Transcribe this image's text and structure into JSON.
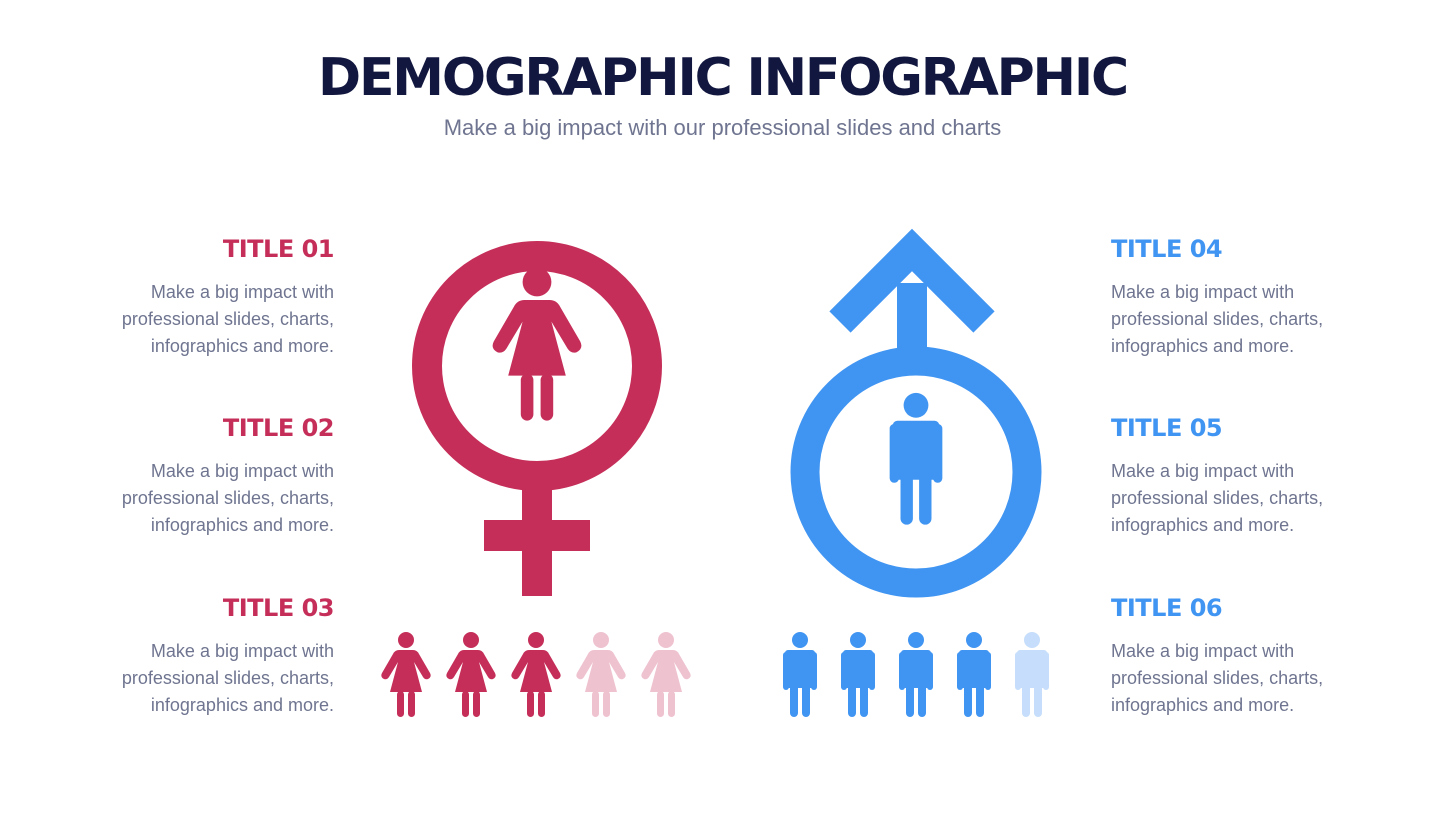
{
  "header": {
    "title": "DEMOGRAPHIC INFOGRAPHIC",
    "subtitle": "Make a big impact with our professional slides and charts"
  },
  "colors": {
    "female": "#c52e58",
    "female_light": "#efc2d0",
    "male": "#4195f2",
    "male_light": "#c6defb",
    "title": "#12173f",
    "body": "#6f7590"
  },
  "left_items": [
    {
      "title": "TITLE 01",
      "body": "Make a big impact with professional slides, charts, infographics and more."
    },
    {
      "title": "TITLE 02",
      "body": "Make a big impact with professional slides, charts, infographics and more."
    },
    {
      "title": "TITLE 03",
      "body": "Make a big impact with professional slides, charts, infographics and more."
    }
  ],
  "right_items": [
    {
      "title": "TITLE 04",
      "body": "Make a big impact with professional slides, charts, infographics and more."
    },
    {
      "title": "TITLE 05",
      "body": "Make a big impact with professional slides, charts, infographics and more."
    },
    {
      "title": "TITLE 06",
      "body": "Make a big impact with professional slides, charts, infographics and more."
    }
  ],
  "icons": {
    "female_symbol": "female-symbol-icon",
    "male_symbol": "male-symbol-icon",
    "female_person": "female-person-icon",
    "male_person": "male-person-icon"
  },
  "ratios": {
    "female": {
      "filled": 3,
      "total": 5
    },
    "male": {
      "filled": 4,
      "total": 5
    }
  }
}
